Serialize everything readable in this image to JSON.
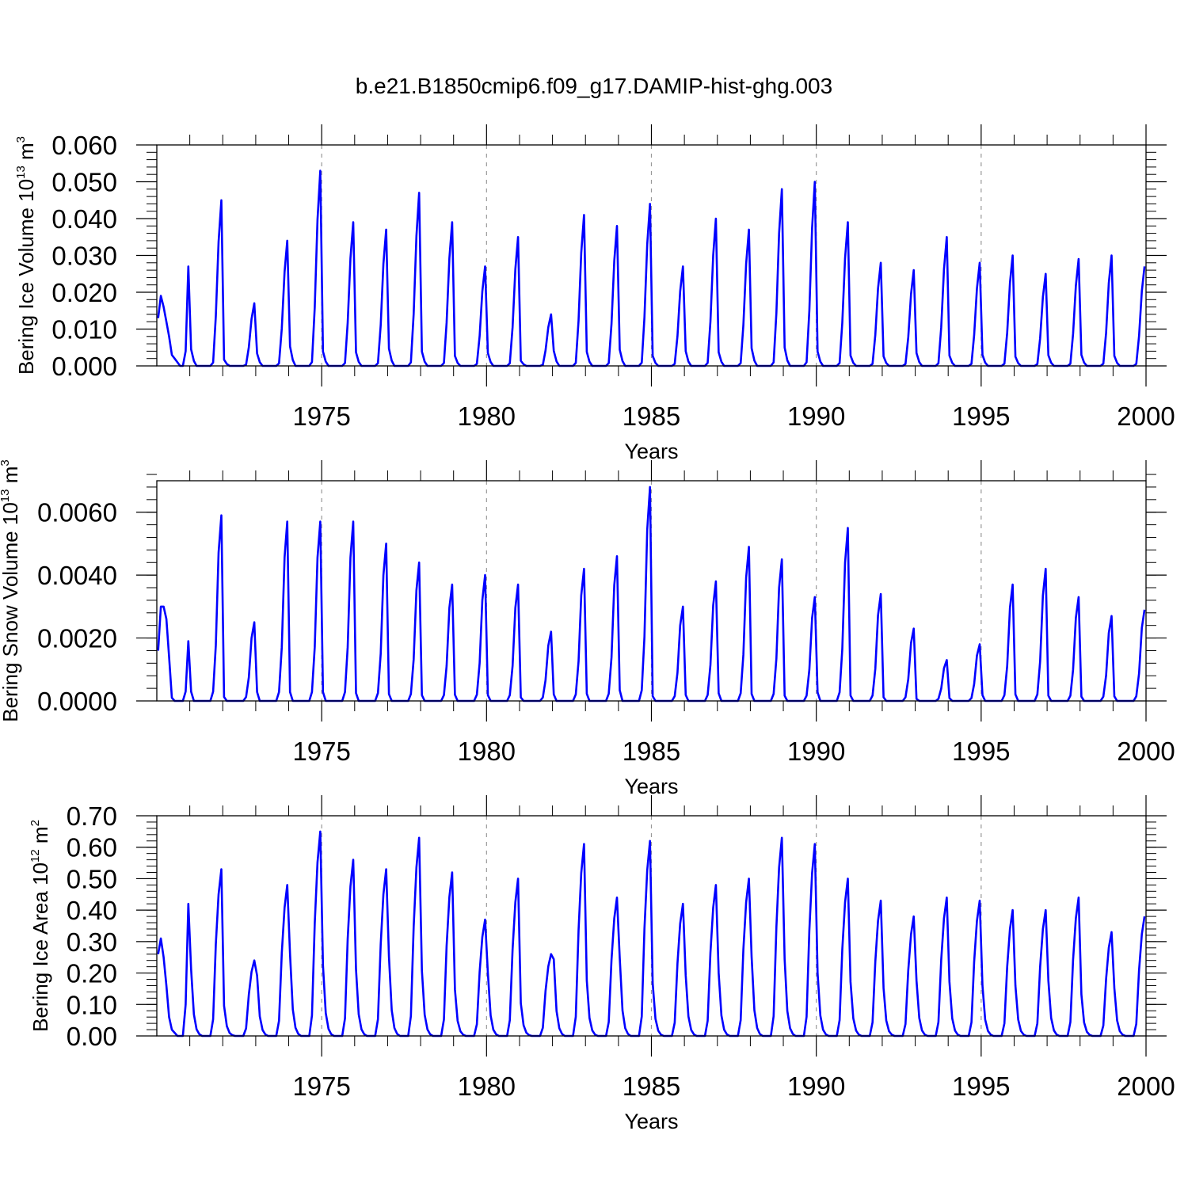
{
  "figure_title": "b.e21.B1850cmip6.f09_g17.DAMIP-hist-ghg.003",
  "colors": {
    "line": "#0000ff",
    "axis": "#000000",
    "gridline": "#999999"
  },
  "chart_data": [
    {
      "type": "line",
      "name": "ice-volume",
      "ylabel": {
        "text": "Bering Ice Volume 10",
        "exp": "13",
        "unit": " m",
        "unit_exp": "3"
      },
      "xlabel": "Years",
      "xlim": [
        1970,
        2000
      ],
      "ylim": [
        0,
        0.06
      ],
      "xticks": [
        1975,
        1980,
        1985,
        1990,
        1995,
        2000
      ],
      "yticks": [
        0,
        0.01,
        0.02,
        0.03,
        0.04,
        0.05,
        0.06
      ],
      "ytick_labels": [
        "0.000",
        "0.010",
        "0.020",
        "0.030",
        "0.040",
        "0.050",
        "0.060"
      ],
      "dashed_x": [
        1975,
        1980,
        1985,
        1990,
        1995
      ],
      "start": 1970.04,
      "step": 0.08333,
      "peaks": [
        0.045,
        0.017,
        0.034,
        0.053,
        0.039,
        0.037,
        0.047,
        0.039,
        0.027,
        0.035,
        0.014,
        0.041,
        0.038,
        0.044,
        0.027,
        0.04,
        0.037,
        0.048,
        0.05,
        0.039,
        0.028,
        0.026,
        0.035,
        0.028,
        0.03,
        0.025,
        0.029,
        0.03,
        0.027
      ],
      "peak_shape": [
        0.1,
        0.03,
        0.0,
        0.0,
        0.0,
        0.0,
        0.0,
        0.0,
        0.02,
        0.3,
        0.75,
        1.0
      ],
      "initial": [
        0.013,
        0.019,
        0.016,
        0.012,
        0.008,
        0.003,
        0.002,
        0.001,
        0.0,
        0.0,
        0.004,
        0.027
      ]
    },
    {
      "type": "line",
      "name": "snow-volume",
      "ylabel": {
        "text": "Bering Snow Volume 10",
        "exp": "13",
        "unit": " m",
        "unit_exp": "3"
      },
      "xlabel": "Years",
      "xlim": [
        1970,
        2000
      ],
      "ylim": [
        0,
        0.007
      ],
      "xticks": [
        1975,
        1980,
        1985,
        1990,
        1995,
        2000
      ],
      "yticks": [
        0,
        0.002,
        0.004,
        0.006
      ],
      "ytick_labels": [
        "0.0000",
        "0.0020",
        "0.0040",
        "0.0060"
      ],
      "dashed_x": [
        1975,
        1980,
        1985,
        1990,
        1995
      ],
      "start": 1970.04,
      "step": 0.08333,
      "peaks": [
        0.0059,
        0.0025,
        0.0057,
        0.0057,
        0.0057,
        0.005,
        0.0044,
        0.0037,
        0.004,
        0.0037,
        0.0022,
        0.0042,
        0.0046,
        0.0068,
        0.003,
        0.0038,
        0.0049,
        0.0045,
        0.0033,
        0.0055,
        0.0034,
        0.0023,
        0.0013,
        0.0018,
        0.0037,
        0.0042,
        0.0033,
        0.0027,
        0.0029
      ],
      "peak_shape": [
        0.05,
        0.0,
        0.0,
        0.0,
        0.0,
        0.0,
        0.0,
        0.0,
        0.05,
        0.3,
        0.8,
        1.0
      ],
      "initial": [
        0.0016,
        0.003,
        0.003,
        0.0026,
        0.0014,
        0.0001,
        0.0,
        0.0,
        0.0,
        0.0,
        0.0003,
        0.0019
      ]
    },
    {
      "type": "line",
      "name": "ice-area",
      "ylabel": {
        "text": "Bering Ice Area 10",
        "exp": "12",
        "unit": " m",
        "unit_exp": "2"
      },
      "xlabel": "Years",
      "xlim": [
        1970,
        2000
      ],
      "ylim": [
        0,
        0.7
      ],
      "xticks": [
        1975,
        1980,
        1985,
        1990,
        1995,
        2000
      ],
      "yticks": [
        0,
        0.1,
        0.2,
        0.3,
        0.4,
        0.5,
        0.6,
        0.7
      ],
      "ytick_labels": [
        "0.00",
        "0.10",
        "0.20",
        "0.30",
        "0.40",
        "0.50",
        "0.60",
        "0.70"
      ],
      "dashed_x": [
        1975,
        1980,
        1985,
        1990,
        1995
      ],
      "start": 1970.04,
      "step": 0.08333,
      "peaks": [
        0.53,
        0.24,
        0.48,
        0.65,
        0.56,
        0.53,
        0.63,
        0.52,
        0.37,
        0.5,
        0.26,
        0.61,
        0.44,
        0.62,
        0.42,
        0.48,
        0.5,
        0.63,
        0.61,
        0.5,
        0.43,
        0.38,
        0.44,
        0.43,
        0.4,
        0.4,
        0.44,
        0.33,
        0.38
      ],
      "peak_shape": [
        0.4,
        0.13,
        0.04,
        0.01,
        0.0,
        0.0,
        0.0,
        0.0,
        0.1,
        0.55,
        0.85,
        1.0
      ],
      "initial": [
        0.26,
        0.31,
        0.25,
        0.16,
        0.06,
        0.02,
        0.01,
        0.0,
        0.0,
        0.0,
        0.1,
        0.42
      ]
    }
  ]
}
